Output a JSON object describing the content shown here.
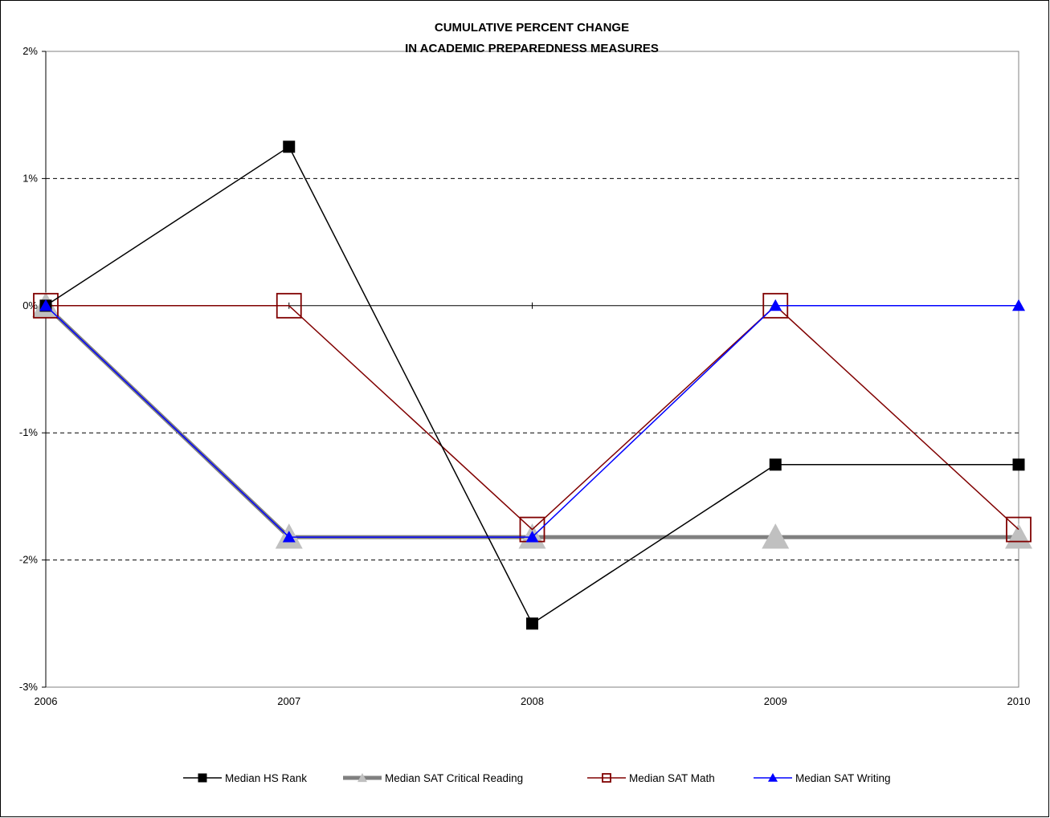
{
  "chart_data": {
    "type": "line",
    "title_lines": [
      "CUMULATIVE PERCENT CHANGE",
      "IN ACADEMIC PREPAREDNESS MEASURES"
    ],
    "xlabel": "",
    "ylabel": "",
    "categories": [
      "2006",
      "2007",
      "2008",
      "2009",
      "2010"
    ],
    "ylim": [
      -3,
      2
    ],
    "yticks": [
      2,
      1,
      0,
      -1,
      -2,
      -3
    ],
    "ytick_labels": [
      "2%",
      "1%",
      "0%",
      "-1%",
      "-2%",
      "-3%"
    ],
    "grid": "dashed horizontal",
    "legend_position": "bottom",
    "series": [
      {
        "name": "Median HS Rank",
        "values": [
          0,
          1.25,
          -2.5,
          -1.25,
          -1.25
        ],
        "color": "#000000",
        "marker": "square-filled"
      },
      {
        "name": "Median SAT Critical Reading",
        "values": [
          0,
          -1.82,
          -1.82,
          -1.82,
          -1.82
        ],
        "color": "#808080",
        "marker_color": "#c0c0c0",
        "marker": "triangle-large"
      },
      {
        "name": "Median SAT Math",
        "values": [
          0,
          0,
          -1.76,
          0,
          -1.76
        ],
        "color": "#800000",
        "marker": "square-hollow"
      },
      {
        "name": "Median SAT Writing",
        "values": [
          0,
          -1.82,
          -1.82,
          0,
          0
        ],
        "color": "#0000ff",
        "marker": "triangle-filled"
      }
    ]
  }
}
